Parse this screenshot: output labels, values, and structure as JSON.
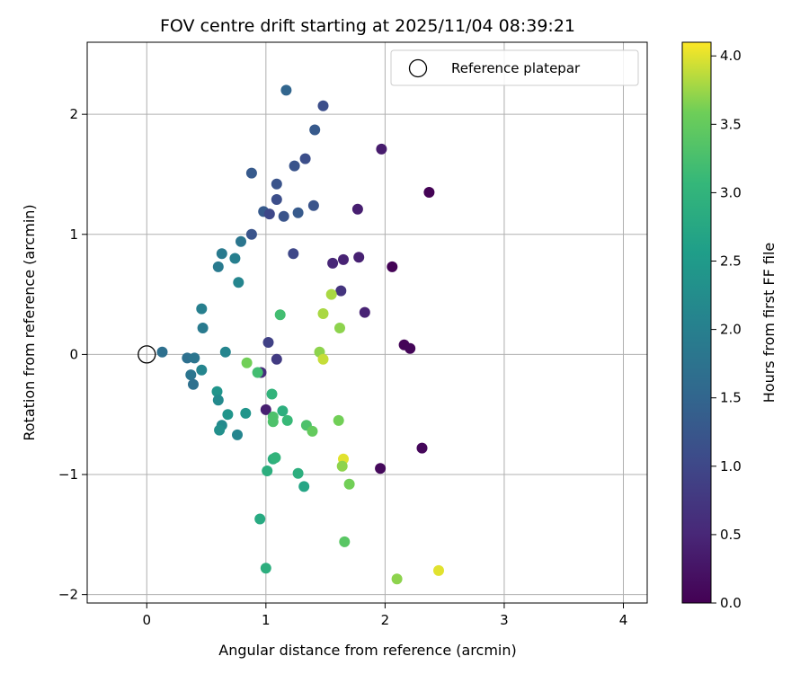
{
  "chart_data": {
    "type": "scatter",
    "title": "FOV centre drift starting at 2025/11/04 08:39:21",
    "xlabel": "Angular distance from reference (arcmin)",
    "ylabel": "Rotation from reference (arcmin)",
    "xlim": [
      -0.5,
      4.2
    ],
    "ylim": [
      -2.07,
      2.6
    ],
    "xticks": [
      0,
      1,
      2,
      3,
      4
    ],
    "xtick_labels": [
      "0",
      "1",
      "2",
      "3",
      "4"
    ],
    "yticks": [
      -2,
      -1,
      0,
      1,
      2
    ],
    "ytick_labels": [
      "−2",
      "−1",
      "0",
      "1",
      "2"
    ],
    "grid": true,
    "legend": {
      "location": "top-right",
      "label": "Reference platepar"
    },
    "reference_point": {
      "x": 0,
      "y": 0
    },
    "colorbar": {
      "label": "Hours from first FF file",
      "range": [
        0,
        4.1
      ],
      "ticks": [
        0.0,
        0.5,
        1.0,
        1.5,
        2.0,
        2.5,
        3.0,
        3.5,
        4.0
      ],
      "tick_labels": [
        "0.0",
        "0.5",
        "1.0",
        "1.5",
        "2.0",
        "2.5",
        "3.0",
        "3.5",
        "4.0"
      ],
      "colormap": "viridis"
    },
    "points": [
      {
        "x": 2.37,
        "y": 1.35,
        "c": 0.02
      },
      {
        "x": 2.06,
        "y": 0.73,
        "c": 0.03
      },
      {
        "x": 2.16,
        "y": 0.08,
        "c": 0.04
      },
      {
        "x": 2.21,
        "y": 0.05,
        "c": 0.06
      },
      {
        "x": 2.31,
        "y": -0.78,
        "c": 0.08
      },
      {
        "x": 1.96,
        "y": -0.95,
        "c": 0.1
      },
      {
        "x": 1.97,
        "y": 1.71,
        "c": 0.35
      },
      {
        "x": 1.77,
        "y": 1.21,
        "c": 0.4
      },
      {
        "x": 1.78,
        "y": 0.81,
        "c": 0.42
      },
      {
        "x": 1.65,
        "y": 0.79,
        "c": 0.45
      },
      {
        "x": 1.56,
        "y": 0.76,
        "c": 0.5
      },
      {
        "x": 1.83,
        "y": 0.35,
        "c": 0.45
      },
      {
        "x": 1.63,
        "y": 0.53,
        "c": 0.7
      },
      {
        "x": 1.0,
        "y": -0.46,
        "c": 0.4
      },
      {
        "x": 1.02,
        "y": 0.1,
        "c": 0.9
      },
      {
        "x": 1.09,
        "y": -0.04,
        "c": 0.8
      },
      {
        "x": 0.96,
        "y": -0.15,
        "c": 0.6
      },
      {
        "x": 1.48,
        "y": 2.07,
        "c": 1.1
      },
      {
        "x": 1.17,
        "y": 2.2,
        "c": 1.5
      },
      {
        "x": 1.41,
        "y": 1.87,
        "c": 1.3
      },
      {
        "x": 1.33,
        "y": 1.63,
        "c": 1.1
      },
      {
        "x": 1.24,
        "y": 1.57,
        "c": 1.2
      },
      {
        "x": 0.88,
        "y": 1.51,
        "c": 1.3
      },
      {
        "x": 1.09,
        "y": 1.42,
        "c": 1.2
      },
      {
        "x": 1.09,
        "y": 1.29,
        "c": 1.1
      },
      {
        "x": 1.4,
        "y": 1.24,
        "c": 1.2
      },
      {
        "x": 0.98,
        "y": 1.19,
        "c": 1.3
      },
      {
        "x": 1.03,
        "y": 1.17,
        "c": 1.0
      },
      {
        "x": 1.15,
        "y": 1.15,
        "c": 1.2
      },
      {
        "x": 1.27,
        "y": 1.18,
        "c": 1.3
      },
      {
        "x": 0.88,
        "y": 1.0,
        "c": 1.2
      },
      {
        "x": 1.23,
        "y": 0.84,
        "c": 1.0
      },
      {
        "x": 0.79,
        "y": 0.94,
        "c": 1.8
      },
      {
        "x": 0.63,
        "y": 0.84,
        "c": 1.9
      },
      {
        "x": 0.74,
        "y": 0.8,
        "c": 2.0
      },
      {
        "x": 0.6,
        "y": 0.73,
        "c": 1.9
      },
      {
        "x": 0.77,
        "y": 0.6,
        "c": 2.1
      },
      {
        "x": 0.46,
        "y": 0.38,
        "c": 2.0
      },
      {
        "x": 0.47,
        "y": 0.22,
        "c": 1.9
      },
      {
        "x": 0.13,
        "y": 0.02,
        "c": 1.7
      },
      {
        "x": 0.66,
        "y": 0.02,
        "c": 2.1
      },
      {
        "x": 0.34,
        "y": -0.03,
        "c": 1.7
      },
      {
        "x": 0.4,
        "y": -0.03,
        "c": 1.8
      },
      {
        "x": 0.46,
        "y": -0.13,
        "c": 2.1
      },
      {
        "x": 0.37,
        "y": -0.17,
        "c": 1.8
      },
      {
        "x": 0.39,
        "y": -0.25,
        "c": 1.7
      },
      {
        "x": 0.59,
        "y": -0.31,
        "c": 2.4
      },
      {
        "x": 0.6,
        "y": -0.38,
        "c": 2.2
      },
      {
        "x": 0.68,
        "y": -0.5,
        "c": 2.4
      },
      {
        "x": 0.83,
        "y": -0.49,
        "c": 2.4
      },
      {
        "x": 0.63,
        "y": -0.59,
        "c": 2.2
      },
      {
        "x": 0.61,
        "y": -0.63,
        "c": 2.3
      },
      {
        "x": 0.76,
        "y": -0.67,
        "c": 2.1
      },
      {
        "x": 0.84,
        "y": -0.07,
        "c": 3.6
      },
      {
        "x": 0.93,
        "y": -0.15,
        "c": 3.2
      },
      {
        "x": 1.12,
        "y": 0.33,
        "c": 3.2
      },
      {
        "x": 1.05,
        "y": -0.33,
        "c": 3.0
      },
      {
        "x": 1.06,
        "y": -0.52,
        "c": 3.3
      },
      {
        "x": 1.06,
        "y": -0.56,
        "c": 3.3
      },
      {
        "x": 1.14,
        "y": -0.47,
        "c": 2.9
      },
      {
        "x": 1.18,
        "y": -0.55,
        "c": 3.1
      },
      {
        "x": 1.34,
        "y": -0.59,
        "c": 3.3
      },
      {
        "x": 1.39,
        "y": -0.64,
        "c": 3.5
      },
      {
        "x": 1.06,
        "y": -0.87,
        "c": 2.9
      },
      {
        "x": 1.08,
        "y": -0.86,
        "c": 3.0
      },
      {
        "x": 1.01,
        "y": -0.97,
        "c": 2.9
      },
      {
        "x": 1.27,
        "y": -0.99,
        "c": 2.9
      },
      {
        "x": 1.32,
        "y": -1.1,
        "c": 2.7
      },
      {
        "x": 0.95,
        "y": -1.37,
        "c": 2.8
      },
      {
        "x": 1.0,
        "y": -1.78,
        "c": 2.9
      },
      {
        "x": 1.66,
        "y": -1.56,
        "c": 3.4
      },
      {
        "x": 2.1,
        "y": -1.87,
        "c": 3.7
      },
      {
        "x": 2.45,
        "y": -1.8,
        "c": 4.0
      },
      {
        "x": 1.55,
        "y": 0.5,
        "c": 3.8
      },
      {
        "x": 1.48,
        "y": 0.34,
        "c": 3.8
      },
      {
        "x": 1.62,
        "y": 0.22,
        "c": 3.7
      },
      {
        "x": 1.45,
        "y": 0.02,
        "c": 3.7
      },
      {
        "x": 1.48,
        "y": -0.04,
        "c": 3.9
      },
      {
        "x": 1.61,
        "y": -0.55,
        "c": 3.6
      },
      {
        "x": 1.65,
        "y": -0.87,
        "c": 4.0
      },
      {
        "x": 1.64,
        "y": -0.93,
        "c": 3.7
      },
      {
        "x": 1.7,
        "y": -1.08,
        "c": 3.6
      }
    ]
  }
}
